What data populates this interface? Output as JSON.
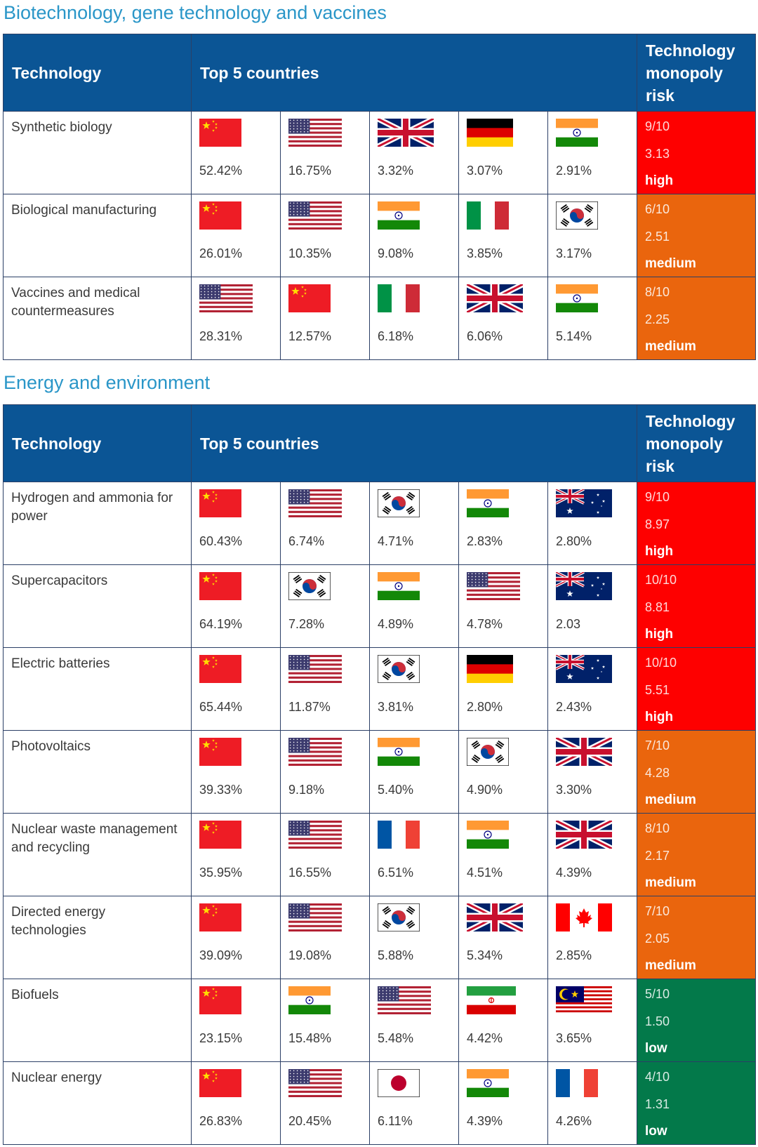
{
  "sections": [
    {
      "title": "Biotechnology, gene technology and vaccines",
      "header": {
        "technology": "Technology",
        "countries": "Top 5 countries",
        "risk": "Technology monopoly risk"
      },
      "rows": [
        {
          "technology": "Synthetic biology",
          "countries": [
            {
              "flag": "china-flag",
              "pct": "52.42%"
            },
            {
              "flag": "usa-flag",
              "pct": "16.75%"
            },
            {
              "flag": "uk-flag",
              "pct": "3.32%"
            },
            {
              "flag": "germany-flag",
              "pct": "3.07%"
            },
            {
              "flag": "india-flag",
              "pct": "2.91%"
            }
          ],
          "risk": {
            "score": "9/10",
            "ratio": "3.13",
            "level": "high"
          }
        },
        {
          "technology": "Biological manufacturing",
          "countries": [
            {
              "flag": "china-flag",
              "pct": "26.01%"
            },
            {
              "flag": "usa-flag",
              "pct": "10.35%"
            },
            {
              "flag": "india-flag",
              "pct": "9.08%"
            },
            {
              "flag": "italy-flag",
              "pct": "3.85%"
            },
            {
              "flag": "south-korea-flag",
              "pct": "3.17%"
            }
          ],
          "risk": {
            "score": "6/10",
            "ratio": "2.51",
            "level": "medium"
          }
        },
        {
          "technology": "Vaccines and medical countermeasures",
          "countries": [
            {
              "flag": "usa-flag",
              "pct": "28.31%"
            },
            {
              "flag": "china-flag",
              "pct": "12.57%"
            },
            {
              "flag": "italy-flag",
              "pct": "6.18%"
            },
            {
              "flag": "uk-flag",
              "pct": "6.06%"
            },
            {
              "flag": "india-flag",
              "pct": "5.14%"
            }
          ],
          "risk": {
            "score": "8/10",
            "ratio": "2.25",
            "level": "medium"
          }
        }
      ]
    },
    {
      "title": "Energy and environment",
      "header": {
        "technology": "Technology",
        "countries": "Top 5 countries",
        "risk": "Technology monopoly risk"
      },
      "rows": [
        {
          "technology": "Hydrogen and ammonia for power",
          "countries": [
            {
              "flag": "china-flag",
              "pct": "60.43%"
            },
            {
              "flag": "usa-flag",
              "pct": "6.74%"
            },
            {
              "flag": "south-korea-flag",
              "pct": "4.71%"
            },
            {
              "flag": "india-flag",
              "pct": "2.83%"
            },
            {
              "flag": "australia-flag",
              "pct": "2.80%"
            }
          ],
          "risk": {
            "score": "9/10",
            "ratio": "8.97",
            "level": "high"
          }
        },
        {
          "technology": "Supercapacitors",
          "countries": [
            {
              "flag": "china-flag",
              "pct": "64.19%"
            },
            {
              "flag": "south-korea-flag",
              "pct": "7.28%"
            },
            {
              "flag": "india-flag",
              "pct": "4.89%"
            },
            {
              "flag": "usa-flag",
              "pct": "4.78%"
            },
            {
              "flag": "australia-flag",
              "pct": "2.03"
            }
          ],
          "risk": {
            "score": "10/10",
            "ratio": "8.81",
            "level": "high"
          }
        },
        {
          "technology": "Electric batteries",
          "countries": [
            {
              "flag": "china-flag",
              "pct": "65.44%"
            },
            {
              "flag": "usa-flag",
              "pct": "11.87%"
            },
            {
              "flag": "south-korea-flag",
              "pct": "3.81%"
            },
            {
              "flag": "germany-flag",
              "pct": "2.80%"
            },
            {
              "flag": "australia-flag",
              "pct": "2.43%"
            }
          ],
          "risk": {
            "score": "10/10",
            "ratio": "5.51",
            "level": "high"
          }
        },
        {
          "technology": "Photovoltaics",
          "countries": [
            {
              "flag": "china-flag",
              "pct": "39.33%"
            },
            {
              "flag": "usa-flag",
              "pct": "9.18%"
            },
            {
              "flag": "india-flag",
              "pct": "5.40%"
            },
            {
              "flag": "south-korea-flag",
              "pct": "4.90%"
            },
            {
              "flag": "uk-flag",
              "pct": "3.30%"
            }
          ],
          "risk": {
            "score": "7/10",
            "ratio": "4.28",
            "level": "medium"
          }
        },
        {
          "technology": "Nuclear waste management and recycling",
          "countries": [
            {
              "flag": "china-flag",
              "pct": "35.95%"
            },
            {
              "flag": "usa-flag",
              "pct": "16.55%"
            },
            {
              "flag": "france-flag",
              "pct": "6.51%"
            },
            {
              "flag": "india-flag",
              "pct": "4.51%"
            },
            {
              "flag": "uk-flag",
              "pct": "4.39%"
            }
          ],
          "risk": {
            "score": "8/10",
            "ratio": "2.17",
            "level": "medium"
          }
        },
        {
          "technology": "Directed energy technologies",
          "countries": [
            {
              "flag": "china-flag",
              "pct": "39.09%"
            },
            {
              "flag": "usa-flag",
              "pct": "19.08%"
            },
            {
              "flag": "south-korea-flag",
              "pct": "5.88%"
            },
            {
              "flag": "uk-flag",
              "pct": "5.34%"
            },
            {
              "flag": "canada-flag",
              "pct": "2.85%"
            }
          ],
          "risk": {
            "score": "7/10",
            "ratio": "2.05",
            "level": "medium"
          }
        },
        {
          "technology": "Biofuels",
          "countries": [
            {
              "flag": "china-flag",
              "pct": "23.15%"
            },
            {
              "flag": "india-flag",
              "pct": "15.48%"
            },
            {
              "flag": "usa-flag",
              "pct": "5.48%"
            },
            {
              "flag": "iran-flag",
              "pct": "4.42%"
            },
            {
              "flag": "malaysia-flag",
              "pct": "3.65%"
            }
          ],
          "risk": {
            "score": "5/10",
            "ratio": "1.50",
            "level": "low"
          }
        },
        {
          "technology": "Nuclear energy",
          "countries": [
            {
              "flag": "china-flag",
              "pct": "26.83%"
            },
            {
              "flag": "usa-flag",
              "pct": "20.45%"
            },
            {
              "flag": "japan-flag",
              "pct": "6.11%"
            },
            {
              "flag": "india-flag",
              "pct": "4.39%"
            },
            {
              "flag": "france-flag",
              "pct": "4.26%"
            }
          ],
          "risk": {
            "score": "4/10",
            "ratio": "1.31",
            "level": "low"
          }
        }
      ]
    }
  ],
  "colors": {
    "header_bg": "#0b5595",
    "title": "#2a96c8",
    "high": "#fe0000",
    "medium": "#ea650d",
    "low": "#03794a"
  }
}
